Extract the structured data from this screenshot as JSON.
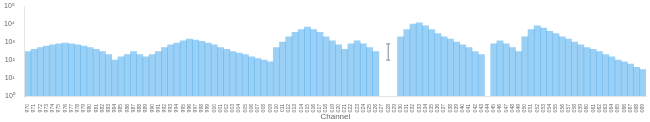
{
  "chart_data": {
    "type": "bar",
    "title": "",
    "xlabel": "Channel",
    "categories": [
      "970",
      "971",
      "972",
      "973",
      "974",
      "975",
      "976",
      "977",
      "978",
      "979",
      "980",
      "981",
      "982",
      "983",
      "984",
      "985",
      "986",
      "987",
      "988",
      "989",
      "990",
      "991",
      "992",
      "993",
      "994",
      "995",
      "996",
      "997",
      "998",
      "999",
      "000",
      "001",
      "002",
      "003",
      "004",
      "005",
      "006",
      "007",
      "008",
      "009",
      "010",
      "011",
      "012",
      "013",
      "014",
      "015",
      "016",
      "017",
      "018",
      "019",
      "020",
      "021",
      "022",
      "023",
      "024",
      "025",
      "026",
      "027",
      "028",
      "029",
      "030",
      "031",
      "032",
      "033",
      "034",
      "035",
      "036",
      "037",
      "038",
      "039",
      "040",
      "041",
      "042",
      "043",
      "044",
      "045",
      "046",
      "047",
      "048",
      "049",
      "050",
      "051",
      "052",
      "053",
      "054",
      "055",
      "056",
      "057",
      "058",
      "059",
      "060",
      "061",
      "062",
      "063",
      "064",
      "065",
      "066",
      "067",
      "068",
      "069"
    ],
    "values": [
      300,
      400,
      500,
      600,
      700,
      800,
      900,
      800,
      700,
      600,
      500,
      400,
      300,
      200,
      100,
      150,
      200,
      300,
      200,
      150,
      200,
      300,
      500,
      700,
      900,
      1200,
      1500,
      1300,
      1100,
      900,
      700,
      500,
      400,
      300,
      250,
      200,
      150,
      120,
      100,
      80,
      500,
      1000,
      2000,
      3500,
      5000,
      7000,
      5000,
      3500,
      2000,
      1200,
      700,
      400,
      800,
      1200,
      800,
      500,
      300,
      null,
      null,
      null,
      2000,
      5000,
      10000,
      12000,
      8000,
      5000,
      3000,
      2000,
      1500,
      1000,
      700,
      500,
      300,
      200,
      null,
      800,
      1200,
      800,
      500,
      300,
      2000,
      5000,
      8000,
      6000,
      4000,
      3000,
      2000,
      1500,
      1000,
      700,
      500,
      400,
      300,
      200,
      150,
      100,
      80,
      60,
      40,
      30
    ],
    "error_bar": {
      "category": "028",
      "value": 300,
      "minus": 200,
      "plus": 500,
      "color": "#888888"
    },
    "log": "y",
    "ylim": [
      1,
      100000
    ],
    "yticks": [
      {
        "value": 1,
        "label": "10⁰"
      },
      {
        "value": 10,
        "label": "10¹"
      },
      {
        "value": 100,
        "label": "10²"
      },
      {
        "value": 1000,
        "label": "10³"
      },
      {
        "value": 10000,
        "label": "10⁴"
      },
      {
        "value": 100000,
        "label": "10⁵"
      }
    ],
    "grid": false
  }
}
